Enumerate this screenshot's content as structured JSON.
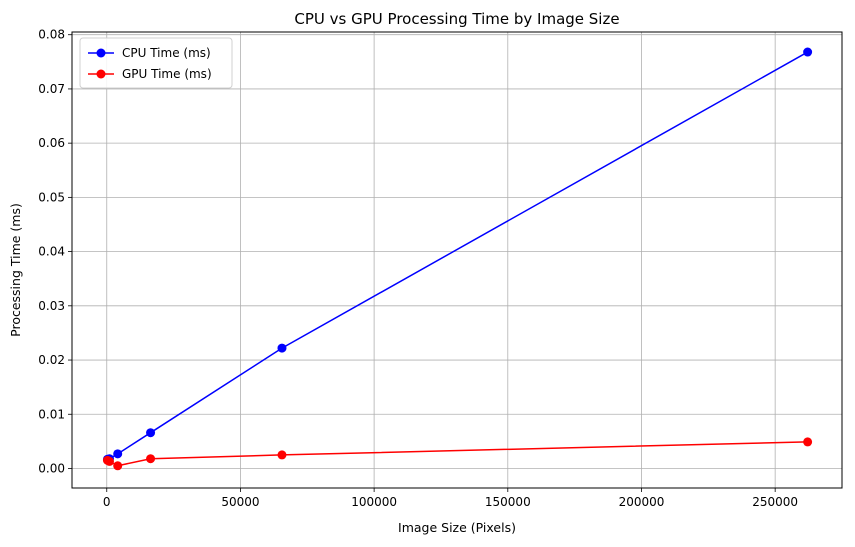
{
  "chart_data": {
    "type": "line",
    "title": "CPU vs GPU Processing Time by Image Size",
    "xlabel": "Image Size (Pixels)",
    "ylabel": "Processing Time (ms)",
    "xlim": [
      -13000,
      275000
    ],
    "ylim": [
      -0.0036,
      0.0805
    ],
    "xticks": [
      0,
      50000,
      100000,
      150000,
      200000,
      250000
    ],
    "yticks": [
      0.0,
      0.01,
      0.02,
      0.03,
      0.04,
      0.05,
      0.06,
      0.07,
      0.08
    ],
    "xtick_labels": [
      "0",
      "50000",
      "100000",
      "150000",
      "200000",
      "250000"
    ],
    "ytick_labels": [
      "0.00",
      "0.01",
      "0.02",
      "0.03",
      "0.04",
      "0.05",
      "0.06",
      "0.07",
      "0.08"
    ],
    "grid": true,
    "legend_position": "top-left",
    "series": [
      {
        "name": "CPU Time (ms)",
        "color": "#0000ff",
        "x": [
          256,
          1024,
          4096,
          16384,
          65536,
          262144
        ],
        "y": [
          0.0017,
          0.0018,
          0.0027,
          0.0066,
          0.0222,
          0.0768
        ]
      },
      {
        "name": "GPU Time (ms)",
        "color": "#ff0000",
        "x": [
          256,
          1024,
          4096,
          16384,
          65536,
          262144
        ],
        "y": [
          0.0015,
          0.0013,
          0.0005,
          0.0018,
          0.0025,
          0.0049
        ]
      }
    ]
  }
}
